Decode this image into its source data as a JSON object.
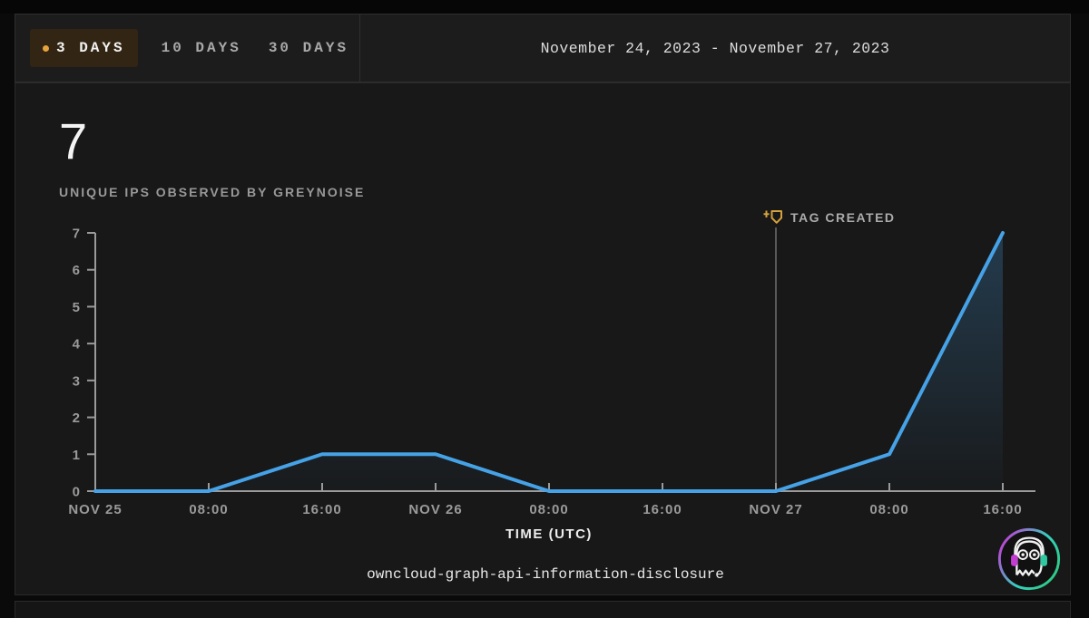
{
  "header": {
    "tabs": [
      {
        "label": "3 DAYS",
        "selected": true
      },
      {
        "label": "10 DAYS",
        "selected": false
      },
      {
        "label": "30 DAYS",
        "selected": false
      }
    ],
    "date_range": "November 24, 2023 - November 27, 2023",
    "accent_color": "#e8a33d"
  },
  "stats": {
    "value": "7",
    "label": "UNIQUE IPS OBSERVED BY GREYNOISE"
  },
  "chart_data": {
    "type": "line",
    "title": "owncloud-graph-api-information-disclosure",
    "xlabel": "TIME (UTC)",
    "ylabel": "",
    "x_labels": [
      "NOV 25",
      "08:00",
      "16:00",
      "NOV 26",
      "08:00",
      "16:00",
      "NOV 27",
      "08:00",
      "16:00"
    ],
    "values": [
      0,
      0,
      1,
      1,
      0,
      0,
      0,
      1,
      7
    ],
    "ylim": [
      0,
      7
    ],
    "y_ticks": [
      0,
      1,
      2,
      3,
      4,
      5,
      6,
      7
    ],
    "grid": false,
    "legend": "none",
    "annotation": {
      "label": "TAG CREATED",
      "x_index": 6,
      "color": "#d4a13c",
      "line_color": "#6f6f6f"
    },
    "line_color": "#46a2e7",
    "area_fill_color": "#45a1e8",
    "axis_color": "#9a9a9a"
  },
  "logo": {
    "name": "greynoise-ghost-logo",
    "ring_colors": [
      "#c43bd4",
      "#35d1c0",
      "#2ec97e"
    ],
    "left_earcup_color": "#c43bd4",
    "right_earcup_color": "#2ec9a0"
  }
}
